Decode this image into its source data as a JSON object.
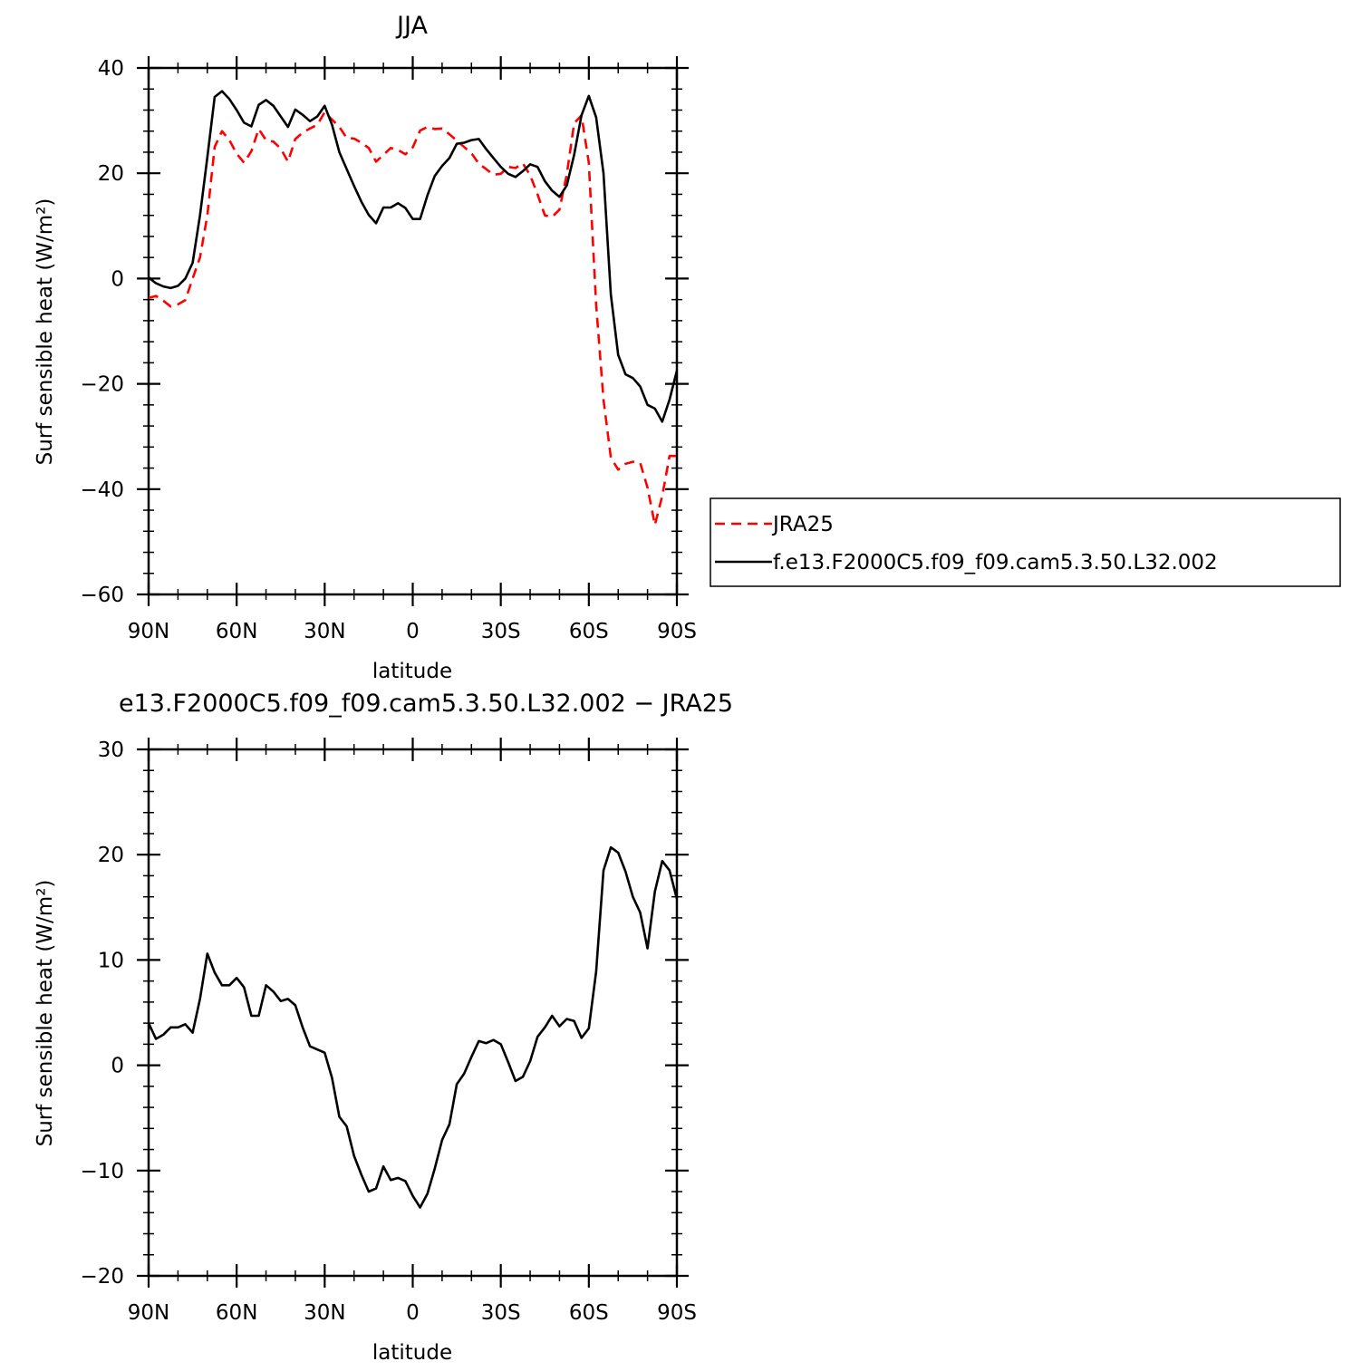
{
  "figure": {
    "top_title": "JJA",
    "bottom_title": "e13.F2000C5.f09_f09.cam5.3.50.L32.002 − JRA25"
  },
  "legend": {
    "items": [
      {
        "label": "JRA25",
        "color": "#ff0000",
        "dash": "dashed"
      },
      {
        "label": "f.e13.F2000C5.f09_f09.cam5.3.50.L32.002",
        "color": "#000000",
        "dash": "solid"
      }
    ]
  },
  "chart_data": [
    {
      "type": "line",
      "title": "JJA",
      "xlabel": "latitude",
      "ylabel": "Surf sensible heat (W/m²)",
      "xlim": [
        90,
        -90
      ],
      "ylim": [
        -60,
        40
      ],
      "xticks": [
        90,
        60,
        30,
        0,
        -30,
        -60,
        -90
      ],
      "xtick_labels": [
        "90N",
        "60N",
        "30N",
        "0",
        "30S",
        "60S",
        "90S"
      ],
      "yticks": [
        -60,
        -40,
        -20,
        0,
        20,
        40
      ],
      "ytick_labels": [
        "−60",
        "−40",
        "−20",
        "0",
        "20",
        "40"
      ],
      "series": [
        {
          "name": "JRA25",
          "color": "#ff0000",
          "dash": "dashed",
          "x": [
            90,
            87.5,
            85,
            82.5,
            80,
            77.5,
            75,
            72.5,
            70,
            67.5,
            65,
            62.5,
            60,
            57.5,
            55,
            52.5,
            50,
            47.5,
            45,
            42.5,
            40,
            37.5,
            35,
            32.5,
            30,
            27.5,
            25,
            22.5,
            20,
            17.5,
            15,
            12.5,
            10,
            7.5,
            5,
            2.5,
            0,
            -2.5,
            -5,
            -7.5,
            -10,
            -12.5,
            -15,
            -17.5,
            -20,
            -22.5,
            -25,
            -27.5,
            -30,
            -32.5,
            -35,
            -37.5,
            -40,
            -42.5,
            -45,
            -47.5,
            -50,
            -52.5,
            -55,
            -57.5,
            -60,
            -62.5,
            -65,
            -67.5,
            -70,
            -72.5,
            -75,
            -77.5,
            -80,
            -82.5,
            -85,
            -87.5,
            -90
          ],
          "values": [
            -3.7,
            -3.3,
            -4.2,
            -5.3,
            -4.9,
            -4.1,
            0.0,
            4.0,
            12.0,
            25.0,
            28.0,
            26.3,
            23.7,
            22.0,
            24.2,
            28.4,
            26.3,
            26.0,
            24.7,
            22.2,
            26.5,
            27.7,
            28.5,
            29.2,
            31.6,
            30.2,
            28.8,
            26.7,
            26.6,
            25.8,
            24.8,
            22.2,
            23.5,
            24.8,
            24.4,
            23.6,
            24.9,
            28.1,
            28.8,
            28.4,
            28.5,
            27.4,
            26.2,
            25.0,
            23.8,
            21.8,
            20.8,
            19.7,
            19.9,
            21.2,
            21.0,
            21.9,
            19.6,
            16.0,
            12.0,
            11.7,
            13.1,
            19.8,
            29.5,
            31.0,
            22.0,
            -5.0,
            -23.0,
            -34.0,
            -36.3,
            -35.2,
            -34.8,
            -35.0,
            -39.7,
            -46.8,
            -41.3,
            -33.7,
            -33.7
          ]
        },
        {
          "name": "f.e13.F2000C5.f09_f09.cam5.3.50.L32.002",
          "color": "#000000",
          "dash": "solid",
          "x": [
            90,
            87.5,
            85,
            82.5,
            80,
            77.5,
            75,
            72.5,
            70,
            67.5,
            65,
            62.5,
            60,
            57.5,
            55,
            52.5,
            50,
            47.5,
            45,
            42.5,
            40,
            37.5,
            35,
            32.5,
            30,
            27.5,
            25,
            22.5,
            20,
            17.5,
            15,
            12.5,
            10,
            7.5,
            5,
            2.5,
            0,
            -2.5,
            -5,
            -7.5,
            -10,
            -12.5,
            -15,
            -17.5,
            -20,
            -22.5,
            -25,
            -27.5,
            -30,
            -32.5,
            -35,
            -37.5,
            -40,
            -42.5,
            -45,
            -47.5,
            -50,
            -52.5,
            -55,
            -57.5,
            -60,
            -62.5,
            -65,
            -67.5,
            -70,
            -72.5,
            -75,
            -77.5,
            -80,
            -82.5,
            -85,
            -87.5,
            -90
          ],
          "values": [
            0.2,
            -0.9,
            -1.5,
            -1.8,
            -1.4,
            0.0,
            3.0,
            12.0,
            23.0,
            34.5,
            35.6,
            34.1,
            32.0,
            29.6,
            28.9,
            33.0,
            33.9,
            32.8,
            30.8,
            28.8,
            32.1,
            31.1,
            29.9,
            30.8,
            32.8,
            29.2,
            24.0,
            20.8,
            17.6,
            14.6,
            12.1,
            10.5,
            13.5,
            13.5,
            14.3,
            13.4,
            11.3,
            11.3,
            15.8,
            19.5,
            21.4,
            22.9,
            25.6,
            25.8,
            26.3,
            26.5,
            24.6,
            22.9,
            21.2,
            19.9,
            19.3,
            20.4,
            21.7,
            21.2,
            18.5,
            16.7,
            15.5,
            17.7,
            23.5,
            31.0,
            34.7,
            30.6,
            20.0,
            -3.0,
            -14.5,
            -18.2,
            -18.9,
            -20.5,
            -24.0,
            -24.7,
            -27.2,
            -23.0,
            -17.5
          ]
        }
      ]
    },
    {
      "type": "line",
      "title": "e13.F2000C5.f09_f09.cam5.3.50.L32.002 − JRA25",
      "xlabel": "latitude",
      "ylabel": "Surf sensible heat (W/m²)",
      "xlim": [
        90,
        -90
      ],
      "ylim": [
        -20,
        30
      ],
      "xticks": [
        90,
        60,
        30,
        0,
        -30,
        -60,
        -90
      ],
      "xtick_labels": [
        "90N",
        "60N",
        "30N",
        "0",
        "30S",
        "60S",
        "90S"
      ],
      "yticks": [
        -20,
        -10,
        0,
        10,
        20,
        30
      ],
      "ytick_labels": [
        "−20",
        "−10",
        "0",
        "10",
        "20",
        "30"
      ],
      "series": [
        {
          "color": "#000000",
          "dash": "solid",
          "x": [
            90,
            87.5,
            85,
            82.5,
            80,
            77.5,
            75,
            72.5,
            70,
            67.5,
            65,
            62.5,
            60,
            57.5,
            55,
            52.5,
            50,
            47.5,
            45,
            42.5,
            40,
            37.5,
            35,
            32.5,
            30,
            27.5,
            25,
            22.5,
            20,
            17.5,
            15,
            12.5,
            10,
            7.5,
            5,
            2.5,
            0,
            -2.5,
            -5,
            -7.5,
            -10,
            -12.5,
            -15,
            -17.5,
            -20,
            -22.5,
            -25,
            -27.5,
            -30,
            -32.5,
            -35,
            -37.5,
            -40,
            -42.5,
            -45,
            -47.5,
            -50,
            -52.5,
            -55,
            -57.5,
            -60,
            -62.5,
            -65,
            -67.5,
            -70,
            -72.5,
            -75,
            -77.5,
            -80,
            -82.5,
            -85,
            -87.5,
            -90
          ],
          "values": [
            4.0,
            2.5,
            2.9,
            3.6,
            3.6,
            3.9,
            3.1,
            6.3,
            10.6,
            8.8,
            7.6,
            7.6,
            8.3,
            7.4,
            4.7,
            4.7,
            7.6,
            7.0,
            6.1,
            6.3,
            5.7,
            3.6,
            1.8,
            1.5,
            1.2,
            -1.2,
            -4.9,
            -5.8,
            -8.6,
            -10.4,
            -12.0,
            -11.7,
            -9.6,
            -10.9,
            -10.7,
            -11.0,
            -12.4,
            -13.5,
            -12.2,
            -9.8,
            -7.1,
            -5.6,
            -1.8,
            -0.8,
            0.8,
            2.3,
            2.1,
            2.4,
            2.0,
            0.3,
            -1.5,
            -1.1,
            0.4,
            2.7,
            3.6,
            4.7,
            3.7,
            4.4,
            4.2,
            2.6,
            3.5,
            8.9,
            18.5,
            20.7,
            20.2,
            18.4,
            16.0,
            14.5,
            11.1,
            16.5,
            19.4,
            18.5,
            15.8
          ]
        }
      ]
    }
  ]
}
